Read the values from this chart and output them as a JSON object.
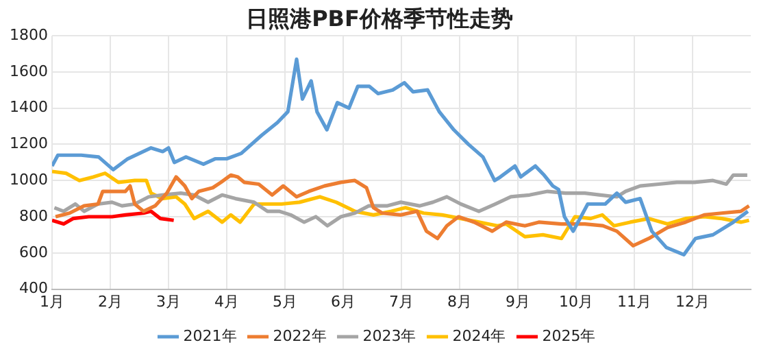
{
  "chart_data": {
    "type": "line",
    "title": "日照港PBF价格季节性走势",
    "xlim": [
      1,
      13
    ],
    "xticks": [
      {
        "value": 1,
        "label": "1月"
      },
      {
        "value": 2,
        "label": "2月"
      },
      {
        "value": 3,
        "label": "3月"
      },
      {
        "value": 4,
        "label": "4月"
      },
      {
        "value": 5,
        "label": "5月"
      },
      {
        "value": 6,
        "label": "6月"
      },
      {
        "value": 7,
        "label": "7月"
      },
      {
        "value": 8,
        "label": "8月"
      },
      {
        "value": 9,
        "label": "9月"
      },
      {
        "value": 10,
        "label": "10月"
      },
      {
        "value": 11,
        "label": "11月"
      },
      {
        "value": 12,
        "label": "12月"
      }
    ],
    "ylim": [
      400,
      1800
    ],
    "yticks": [
      400,
      600,
      800,
      1000,
      1200,
      1400,
      1600,
      1800
    ],
    "grid": true,
    "legend": "bottom",
    "marker": "none",
    "line_style": "solid",
    "series": [
      {
        "name": "2021年",
        "color": "#5b9bd5",
        "x": [
          1.0,
          1.1,
          1.5,
          1.8,
          2.05,
          2.3,
          2.7,
          2.9,
          3.0,
          3.1,
          3.3,
          3.6,
          3.8,
          4.0,
          4.25,
          4.6,
          4.87,
          5.05,
          5.2,
          5.3,
          5.45,
          5.55,
          5.72,
          5.9,
          6.1,
          6.25,
          6.45,
          6.6,
          6.85,
          7.05,
          7.2,
          7.45,
          7.65,
          7.9,
          8.15,
          8.4,
          8.6,
          8.7,
          8.95,
          9.05,
          9.3,
          9.45,
          9.6,
          9.7,
          9.8,
          9.95,
          10.2,
          10.5,
          10.7,
          10.85,
          11.1,
          11.3,
          11.55,
          11.85,
          12.05,
          12.35,
          12.7,
          12.95
        ],
        "values": [
          1080,
          1140,
          1140,
          1130,
          1060,
          1120,
          1180,
          1160,
          1180,
          1100,
          1130,
          1090,
          1120,
          1120,
          1150,
          1250,
          1320,
          1380,
          1670,
          1450,
          1550,
          1380,
          1280,
          1430,
          1400,
          1520,
          1520,
          1480,
          1500,
          1540,
          1490,
          1500,
          1380,
          1280,
          1200,
          1130,
          1000,
          1020,
          1080,
          1020,
          1080,
          1030,
          970,
          950,
          800,
          720,
          870,
          870,
          930,
          880,
          900,
          720,
          630,
          590,
          680,
          700,
          770,
          830
        ]
      },
      {
        "name": "2022年",
        "color": "#ed7d31",
        "x": [
          1.06,
          1.3,
          1.55,
          1.79,
          1.87,
          2.26,
          2.34,
          2.42,
          2.57,
          2.77,
          2.97,
          3.13,
          3.28,
          3.4,
          3.52,
          3.76,
          3.9,
          4.07,
          4.19,
          4.3,
          4.55,
          4.78,
          4.97,
          5.2,
          5.41,
          5.68,
          5.96,
          6.2,
          6.4,
          6.52,
          6.67,
          6.99,
          7.27,
          7.43,
          7.62,
          7.78,
          7.98,
          8.25,
          8.56,
          8.8,
          9.12,
          9.36,
          9.75,
          10.15,
          10.46,
          10.7,
          10.98,
          11.25,
          11.57,
          11.88,
          12.2,
          12.5,
          12.83,
          12.97
        ],
        "values": [
          800,
          820,
          860,
          870,
          940,
          940,
          970,
          870,
          830,
          860,
          930,
          1020,
          970,
          900,
          940,
          960,
          990,
          1030,
          1020,
          990,
          980,
          920,
          970,
          910,
          940,
          970,
          990,
          1000,
          960,
          850,
          820,
          810,
          830,
          720,
          680,
          750,
          800,
          770,
          720,
          770,
          750,
          770,
          760,
          760,
          750,
          720,
          640,
          680,
          740,
          770,
          810,
          820,
          830,
          860
        ]
      },
      {
        "name": "2023年",
        "color": "#a5a5a5",
        "x": [
          1.04,
          1.2,
          1.4,
          1.55,
          1.79,
          2.03,
          2.2,
          2.42,
          2.66,
          2.89,
          3.21,
          3.44,
          3.68,
          3.92,
          4.15,
          4.47,
          4.7,
          4.9,
          5.1,
          5.33,
          5.53,
          5.73,
          5.96,
          6.2,
          6.44,
          6.75,
          6.99,
          7.31,
          7.54,
          7.78,
          8.02,
          8.33,
          8.61,
          8.88,
          9.2,
          9.51,
          9.82,
          10.15,
          10.42,
          10.7,
          10.85,
          11.1,
          11.42,
          11.73,
          12.04,
          12.35,
          12.58,
          12.7,
          12.94
        ],
        "values": [
          850,
          830,
          870,
          830,
          870,
          880,
          860,
          870,
          910,
          920,
          930,
          920,
          880,
          920,
          900,
          880,
          830,
          830,
          810,
          770,
          800,
          750,
          800,
          820,
          860,
          860,
          880,
          860,
          880,
          910,
          870,
          830,
          870,
          910,
          920,
          940,
          930,
          930,
          920,
          910,
          940,
          970,
          980,
          990,
          990,
          1000,
          980,
          1030,
          1030
        ]
      },
      {
        "name": "2024年",
        "color": "#ffc000",
        "x": [
          1.0,
          1.24,
          1.47,
          1.71,
          1.91,
          2.14,
          2.42,
          2.62,
          2.7,
          2.89,
          3.13,
          3.28,
          3.44,
          3.68,
          3.92,
          4.07,
          4.23,
          4.47,
          4.62,
          4.94,
          5.25,
          5.6,
          5.88,
          6.2,
          6.52,
          6.83,
          7.07,
          7.38,
          7.7,
          8.02,
          8.33,
          8.65,
          8.8,
          9.12,
          9.43,
          9.75,
          9.98,
          10.25,
          10.45,
          10.65,
          10.93,
          11.25,
          11.57,
          11.88,
          12.2,
          12.5,
          12.83,
          12.97
        ],
        "values": [
          1050,
          1040,
          1000,
          1020,
          1040,
          990,
          1000,
          1000,
          930,
          900,
          910,
          870,
          790,
          830,
          770,
          810,
          770,
          870,
          870,
          870,
          880,
          910,
          880,
          830,
          810,
          830,
          850,
          820,
          810,
          790,
          770,
          750,
          760,
          690,
          700,
          680,
          800,
          790,
          810,
          750,
          770,
          790,
          760,
          790,
          800,
          790,
          770,
          780
        ]
      },
      {
        "name": "2025年",
        "color": "#ff0000",
        "x": [
          1.0,
          1.2,
          1.36,
          1.63,
          2.03,
          2.26,
          2.57,
          2.7,
          2.86,
          3.09
        ],
        "values": [
          780,
          760,
          790,
          800,
          800,
          810,
          820,
          830,
          790,
          780
        ]
      }
    ]
  }
}
